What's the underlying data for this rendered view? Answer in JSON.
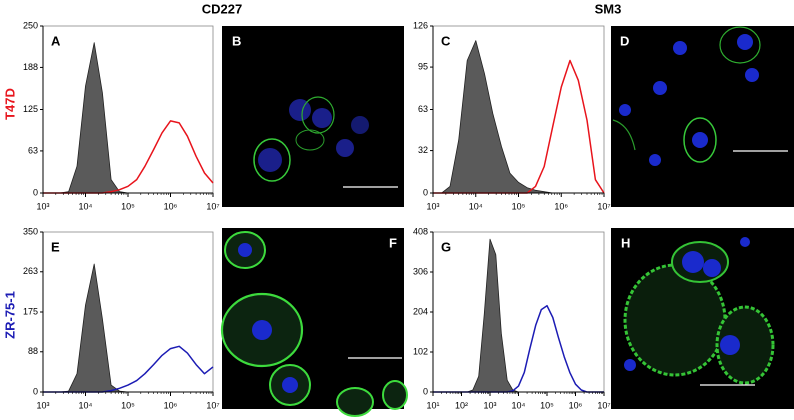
{
  "column_headers": [
    "CD227",
    "SM3"
  ],
  "row_labels": [
    {
      "text": "T47D",
      "color": "#e8141c"
    },
    {
      "text": "ZR-75-1",
      "color": "#1c1cb4"
    }
  ],
  "image_panels": [
    {
      "letter": "B"
    },
    {
      "letter": "D"
    },
    {
      "letter": "F"
    },
    {
      "letter": "H"
    }
  ],
  "chart_data": [
    {
      "type": "line",
      "panel": "A",
      "log_x": true,
      "x": [
        1000,
        1600,
        2500,
        4000,
        6300,
        10000,
        16000,
        25000,
        40000,
        63000,
        100000,
        160000,
        250000,
        400000,
        630000,
        1000000,
        1600000,
        2500000,
        4000000,
        6300000,
        10000000
      ],
      "series": [
        {
          "color": "#222222",
          "fill": "#5a5a5a",
          "values": [
            0,
            0,
            0,
            2,
            40,
            160,
            225,
            150,
            20,
            2,
            0,
            0,
            0,
            0,
            0,
            0,
            0,
            0,
            0,
            0,
            0
          ]
        },
        {
          "color": "#e8141c",
          "values": [
            0,
            0,
            0,
            0,
            0,
            0,
            0,
            0,
            2,
            5,
            10,
            20,
            40,
            65,
            90,
            108,
            105,
            85,
            55,
            30,
            15
          ]
        }
      ],
      "xlim": [
        1000,
        10000000
      ],
      "xticks": [
        {
          "value": 1000,
          "label": "10³"
        },
        {
          "value": 10000,
          "label": "10⁴"
        },
        {
          "value": 100000,
          "label": "10⁵"
        },
        {
          "value": 1000000,
          "label": "10⁶"
        },
        {
          "value": 10000000,
          "label": "10⁷"
        }
      ],
      "ylim": [
        0,
        250
      ],
      "yticks": [
        0,
        63,
        125,
        188,
        250
      ]
    },
    {
      "type": "line",
      "panel": "C",
      "log_x": true,
      "x": [
        1000,
        1600,
        2500,
        4000,
        6300,
        10000,
        16000,
        25000,
        40000,
        63000,
        100000,
        160000,
        250000,
        400000,
        630000,
        1000000,
        1600000,
        2500000,
        4000000,
        6300000,
        10000000
      ],
      "series": [
        {
          "color": "#222222",
          "fill": "#5a5a5a",
          "values": [
            0,
            0,
            5,
            40,
            100,
            115,
            90,
            60,
            35,
            15,
            8,
            4,
            2,
            1,
            0,
            0,
            0,
            0,
            0,
            0,
            0
          ]
        },
        {
          "color": "#e8141c",
          "values": [
            0,
            0,
            0,
            0,
            0,
            0,
            0,
            0,
            0,
            0,
            0,
            0,
            5,
            20,
            50,
            80,
            100,
            85,
            55,
            10,
            0
          ]
        }
      ],
      "xlim": [
        1000,
        10000000
      ],
      "xticks": [
        {
          "value": 1000,
          "label": "10³"
        },
        {
          "value": 10000,
          "label": "10⁴"
        },
        {
          "value": 100000,
          "label": "10⁵"
        },
        {
          "value": 1000000,
          "label": "10⁶"
        },
        {
          "value": 10000000,
          "label": "10⁷"
        }
      ],
      "ylim": [
        0,
        126
      ],
      "yticks": [
        0,
        32,
        63,
        95,
        126
      ]
    },
    {
      "type": "line",
      "panel": "E",
      "log_x": true,
      "x": [
        1000,
        1600,
        2500,
        4000,
        6300,
        10000,
        16000,
        25000,
        40000,
        63000,
        100000,
        160000,
        250000,
        400000,
        630000,
        1000000,
        1600000,
        2500000,
        4000000,
        6300000,
        10000000
      ],
      "series": [
        {
          "color": "#222222",
          "fill": "#5a5a5a",
          "values": [
            0,
            0,
            0,
            2,
            40,
            190,
            280,
            160,
            15,
            2,
            0,
            0,
            0,
            0,
            0,
            0,
            0,
            0,
            0,
            0,
            0
          ]
        },
        {
          "color": "#1c1cb4",
          "values": [
            0,
            0,
            0,
            0,
            0,
            0,
            0,
            0,
            3,
            8,
            15,
            25,
            40,
            60,
            80,
            95,
            100,
            85,
            60,
            40,
            55
          ]
        }
      ],
      "xlim": [
        1000,
        10000000
      ],
      "xticks": [
        {
          "value": 1000,
          "label": "10³"
        },
        {
          "value": 10000,
          "label": "10⁴"
        },
        {
          "value": 100000,
          "label": "10⁵"
        },
        {
          "value": 1000000,
          "label": "10⁶"
        },
        {
          "value": 10000000,
          "label": "10⁷"
        }
      ],
      "ylim": [
        0,
        350
      ],
      "yticks": [
        0,
        88,
        175,
        263,
        350
      ]
    },
    {
      "type": "line",
      "panel": "G",
      "log_x": true,
      "x": [
        10,
        16,
        25,
        40,
        63,
        100,
        160,
        250,
        400,
        630,
        1000,
        1600,
        2500,
        4000,
        6300,
        10000,
        16000,
        25000,
        40000,
        63000,
        100000,
        160000,
        250000,
        400000,
        630000,
        1000000,
        1600000,
        2500000,
        4000000,
        6300000,
        10000000
      ],
      "series": [
        {
          "color": "#222222",
          "fill": "#5a5a5a",
          "values": [
            0,
            0,
            0,
            0,
            0,
            0,
            0,
            5,
            40,
            200,
            390,
            350,
            150,
            30,
            5,
            0,
            0,
            0,
            0,
            0,
            0,
            0,
            0,
            0,
            0,
            0,
            0,
            0,
            0,
            0,
            0
          ]
        },
        {
          "color": "#1c1cb4",
          "values": [
            0,
            0,
            0,
            0,
            0,
            0,
            0,
            0,
            0,
            0,
            0,
            0,
            0,
            0,
            3,
            15,
            50,
            110,
            170,
            210,
            220,
            190,
            140,
            90,
            50,
            20,
            5,
            0,
            0,
            0,
            0
          ]
        }
      ],
      "xlim": [
        10,
        10000000
      ],
      "xticks": [
        {
          "value": 10,
          "label": "10¹"
        },
        {
          "value": 100,
          "label": "10²"
        },
        {
          "value": 1000,
          "label": "10³"
        },
        {
          "value": 10000,
          "label": "10⁴"
        },
        {
          "value": 100000,
          "label": "10⁵"
        },
        {
          "value": 1000000,
          "label": "10⁶"
        },
        {
          "value": 10000000,
          "label": "10⁷"
        }
      ],
      "ylim": [
        0,
        408
      ],
      "yticks": [
        0,
        102,
        204,
        306,
        408
      ]
    }
  ]
}
